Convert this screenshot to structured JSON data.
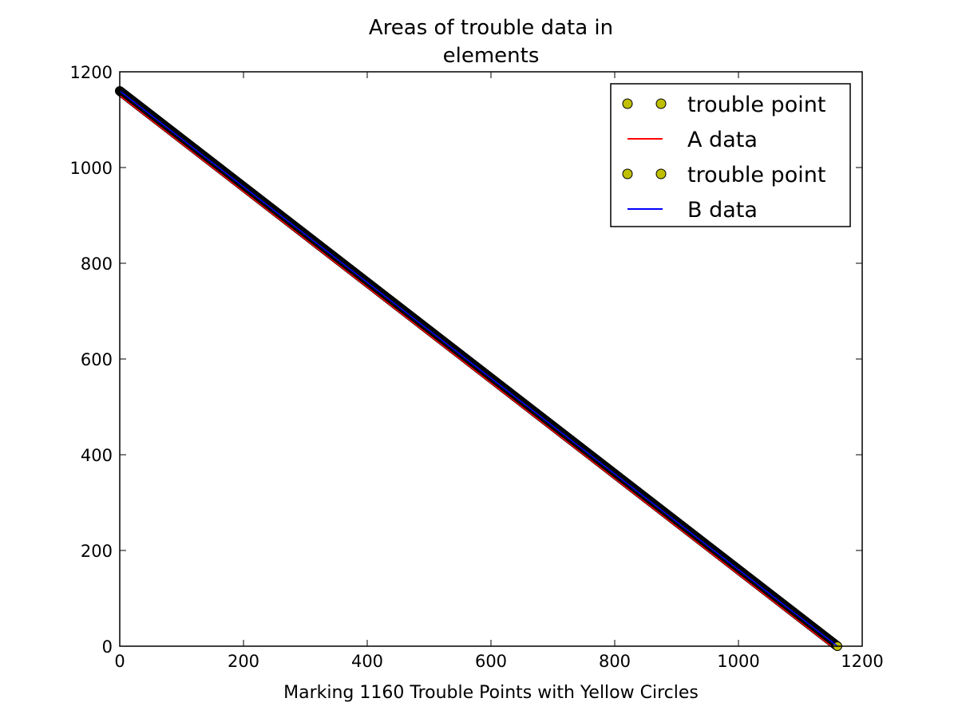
{
  "chart_data": {
    "type": "line",
    "title": [
      "Areas of trouble data in",
      "elements"
    ],
    "xlabel": "Marking 1160 Trouble Points with Yellow Circles",
    "ylabel": "",
    "xlim": [
      0,
      1200
    ],
    "ylim": [
      0,
      1200
    ],
    "x_ticks": [
      "0",
      "200",
      "400",
      "600",
      "800",
      "1000",
      "1200"
    ],
    "y_ticks": [
      "0",
      "200",
      "400",
      "600",
      "800",
      "1000",
      "1200"
    ],
    "grid": false,
    "legend_position": "top-right",
    "series": [
      {
        "name": "trouble point",
        "kind": "scatter",
        "color": "#bfbf00",
        "edge_color": "#000000",
        "start": [
          0,
          1160
        ],
        "end": [
          1160,
          0
        ],
        "count": 1160
      },
      {
        "name": "A data",
        "kind": "line",
        "color": "#ff0000",
        "x": [
          0,
          1150
        ],
        "y": [
          1150,
          0
        ]
      },
      {
        "name": "trouble point",
        "kind": "scatter",
        "color": "#bfbf00",
        "edge_color": "#000000",
        "start": [
          0,
          1160
        ],
        "end": [
          1160,
          0
        ],
        "count": 1160
      },
      {
        "name": "B data",
        "kind": "line",
        "color": "#0000ff",
        "x": [
          0,
          1160
        ],
        "y": [
          1160,
          0
        ]
      }
    ]
  }
}
